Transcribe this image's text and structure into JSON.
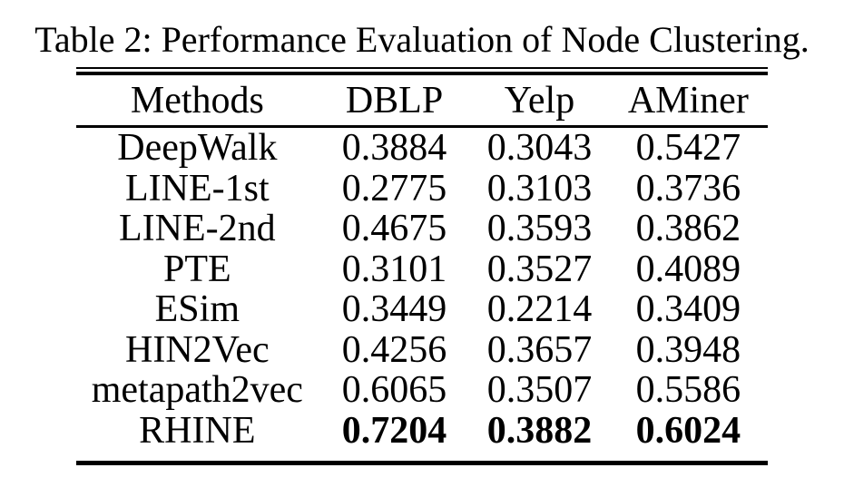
{
  "table": {
    "caption": "Table 2: Performance Evaluation of Node Clustering.",
    "columns": [
      "Methods",
      "DBLP",
      "Yelp",
      "AMiner"
    ],
    "rows": [
      {
        "method": "DeepWalk",
        "values": [
          "0.3884",
          "0.3043",
          "0.5427"
        ],
        "bold_values": false
      },
      {
        "method": "LINE-1st",
        "values": [
          "0.2775",
          "0.3103",
          "0.3736"
        ],
        "bold_values": false
      },
      {
        "method": "LINE-2nd",
        "values": [
          "0.4675",
          "0.3593",
          "0.3862"
        ],
        "bold_values": false
      },
      {
        "method": "PTE",
        "values": [
          "0.3101",
          "0.3527",
          "0.4089"
        ],
        "bold_values": false
      },
      {
        "method": "ESim",
        "values": [
          "0.3449",
          "0.2214",
          "0.3409"
        ],
        "bold_values": false
      },
      {
        "method": "HIN2Vec",
        "values": [
          "0.4256",
          "0.3657",
          "0.3948"
        ],
        "bold_values": false
      },
      {
        "method": "metapath2vec",
        "values": [
          "0.6065",
          "0.3507",
          "0.5586"
        ],
        "bold_values": false
      },
      {
        "method": "RHINE",
        "values": [
          "0.7204",
          "0.3882",
          "0.6024"
        ],
        "bold_values": true
      }
    ],
    "text_color": "#000000",
    "background_color": "#ffffff"
  },
  "chart_data": {
    "type": "table",
    "title": "Table 2: Performance Evaluation of Node Clustering.",
    "categories": [
      "DBLP",
      "Yelp",
      "AMiner"
    ],
    "series": [
      {
        "name": "DeepWalk",
        "values": [
          0.3884,
          0.3043,
          0.5427
        ]
      },
      {
        "name": "LINE-1st",
        "values": [
          0.2775,
          0.3103,
          0.3736
        ]
      },
      {
        "name": "LINE-2nd",
        "values": [
          0.4675,
          0.3593,
          0.3862
        ]
      },
      {
        "name": "PTE",
        "values": [
          0.3101,
          0.3527,
          0.4089
        ]
      },
      {
        "name": "ESim",
        "values": [
          0.3449,
          0.2214,
          0.3409
        ]
      },
      {
        "name": "HIN2Vec",
        "values": [
          0.4256,
          0.3657,
          0.3948
        ]
      },
      {
        "name": "metapath2vec",
        "values": [
          0.6065,
          0.3507,
          0.5586
        ]
      },
      {
        "name": "RHINE",
        "values": [
          0.7204,
          0.3882,
          0.6024
        ]
      }
    ]
  }
}
